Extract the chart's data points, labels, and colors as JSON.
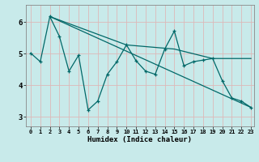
{
  "xlabel": "Humidex (Indice chaleur)",
  "bg_color": "#c8eaea",
  "grid_color": "#ddb8b8",
  "line_color": "#006868",
  "xlim": [
    -0.5,
    23.3
  ],
  "ylim": [
    2.7,
    6.55
  ],
  "xticks": [
    0,
    1,
    2,
    3,
    4,
    5,
    6,
    7,
    8,
    9,
    10,
    11,
    12,
    13,
    14,
    15,
    16,
    17,
    18,
    19,
    20,
    21,
    22,
    23
  ],
  "yticks": [
    3,
    4,
    5,
    6
  ],
  "line1_x": [
    0,
    1,
    2,
    3,
    4,
    5,
    6,
    7,
    8,
    9,
    10,
    11,
    12,
    13,
    14,
    15,
    16,
    17,
    18,
    19,
    20,
    21,
    22,
    23
  ],
  "line1_y": [
    5.02,
    4.75,
    6.18,
    5.55,
    4.45,
    4.95,
    3.22,
    3.5,
    4.35,
    4.75,
    5.28,
    4.78,
    4.45,
    4.35,
    5.15,
    5.72,
    4.62,
    4.75,
    4.8,
    4.85,
    4.15,
    3.6,
    3.5,
    3.3
  ],
  "line2_x": [
    2,
    23
  ],
  "line2_y": [
    6.18,
    3.3
  ],
  "line3_x": [
    2,
    10,
    15,
    19,
    23
  ],
  "line3_y": [
    6.18,
    5.28,
    5.15,
    4.85,
    4.85
  ]
}
